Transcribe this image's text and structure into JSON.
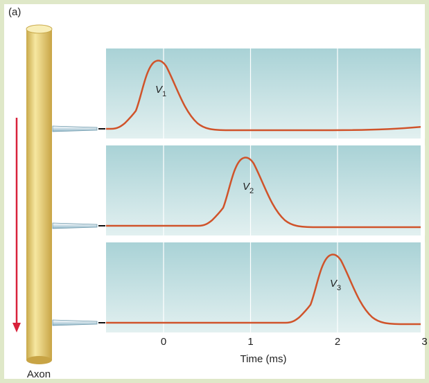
{
  "figure_label": "(a)",
  "axon_label": "Axon",
  "panels": [
    {
      "label": "V",
      "subscript": "1"
    },
    {
      "label": "V",
      "subscript": "2"
    },
    {
      "label": "V",
      "subscript": "3"
    }
  ],
  "x_axis": {
    "title": "Time (ms)",
    "ticks": [
      0,
      1,
      2,
      3
    ]
  }
}
